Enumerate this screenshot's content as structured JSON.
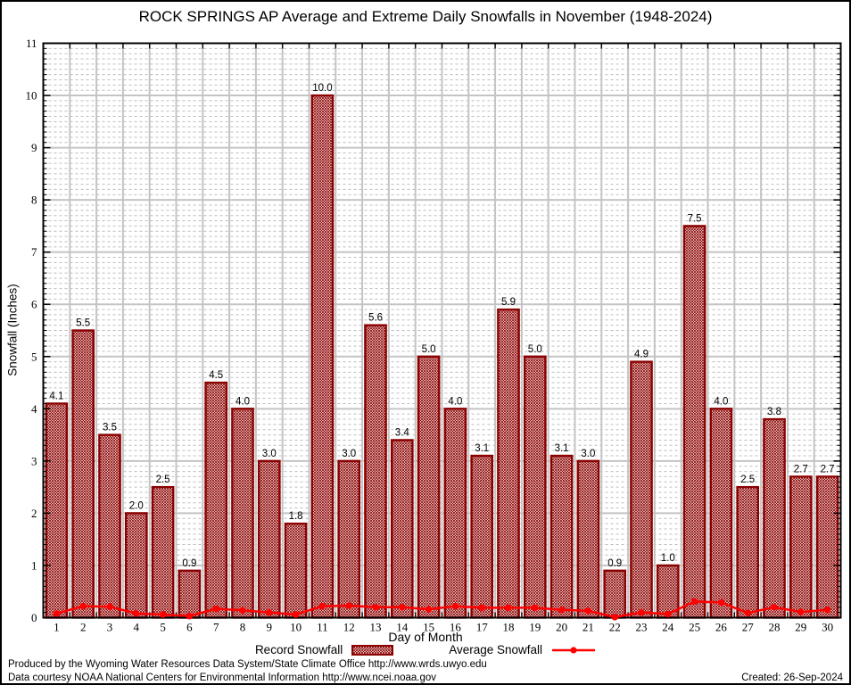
{
  "header": {
    "title": "ROCK SPRINGS AP Average and Extreme Daily Snowfalls in November (1948-2024)"
  },
  "legend": {
    "record_label": "Record Snowfall",
    "average_label": "Average Snowfall"
  },
  "footer": {
    "line1": "Produced by the Wyoming Water Resources Data System/State Climate Office http://www.wrds.uwyo.edu",
    "line2": "Data courtesy NOAA National Centers for Environmental Information http://www.ncei.noaa.gov",
    "created": "Created: 26-Sep-2024"
  },
  "chart_data": {
    "type": "bar",
    "title": "ROCK SPRINGS AP Average and Extreme Daily Snowfalls in November (1948-2024)",
    "xlabel": "Day of Month",
    "ylabel": "Snowfall (Inches)",
    "categories": [
      1,
      2,
      3,
      4,
      5,
      6,
      7,
      8,
      9,
      10,
      11,
      12,
      13,
      14,
      15,
      16,
      17,
      18,
      19,
      20,
      21,
      22,
      23,
      24,
      25,
      26,
      27,
      28,
      29,
      30
    ],
    "series": [
      {
        "name": "Record Snowfall",
        "type": "bar",
        "color": "#8b0000",
        "fill_pattern": "crosshatch",
        "values": [
          4.1,
          5.5,
          3.5,
          2.0,
          2.5,
          0.9,
          4.5,
          4.0,
          3.0,
          1.8,
          10.0,
          3.0,
          5.6,
          3.4,
          5.0,
          4.0,
          3.1,
          5.9,
          5.0,
          3.1,
          3.0,
          0.9,
          4.9,
          1.0,
          7.5,
          4.0,
          2.5,
          3.8,
          2.7,
          2.7
        ],
        "labels_shown": true
      },
      {
        "name": "Average Snowfall",
        "type": "line",
        "color": "#ff0000",
        "marker": "filled-circle",
        "values": [
          0.08,
          0.22,
          0.21,
          0.08,
          0.06,
          0.03,
          0.17,
          0.14,
          0.1,
          0.06,
          0.22,
          0.23,
          0.2,
          0.2,
          0.16,
          0.22,
          0.19,
          0.19,
          0.19,
          0.15,
          0.13,
          0.01,
          0.1,
          0.07,
          0.31,
          0.29,
          0.09,
          0.2,
          0.11,
          0.15
        ],
        "labels_shown": false
      }
    ],
    "ylim": [
      0,
      11
    ],
    "y_major_step": 1,
    "y_minor_step": 0.1,
    "grid": true,
    "legend_position": "bottom",
    "colors": {
      "bar_outline": "#8b0000",
      "average_line": "#ff0000",
      "grid_major": "#c4c4c4",
      "grid_minor": "#bdbdbd",
      "axis_frame": "#000000",
      "value_label": "#000000"
    }
  }
}
